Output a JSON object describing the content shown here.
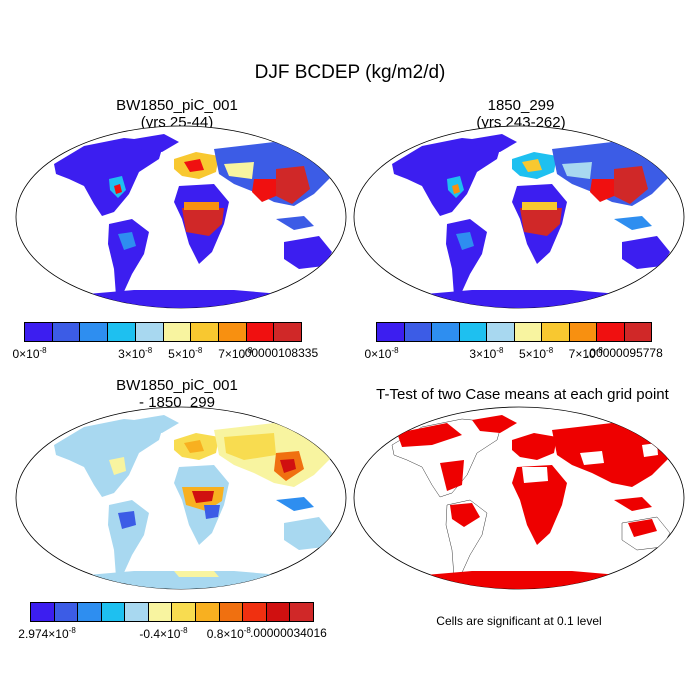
{
  "title": "DJF BCDEP (kg/m2/d)",
  "panels": [
    {
      "title_line1": "BW1850_piC_001",
      "title_line2": "(yrs 25-44)"
    },
    {
      "title_line1": "1850_299",
      "title_line2": "(yrs 243-262)"
    },
    {
      "title_line1": "BW1850_piC_001",
      "title_line2": "- 1850_299"
    },
    {
      "title_line1": "T-Test of two Case means at each grid point",
      "title_line2": ""
    }
  ],
  "colorbars": {
    "case1": {
      "colors": [
        "#3c1ef0",
        "#3c5ce6",
        "#2e8ef0",
        "#1ec0f0",
        "#a8d8f0",
        "#f8f4a0",
        "#f8c830",
        "#f89010",
        "#f01010",
        "#d02828"
      ],
      "labels": [
        {
          "base": "0×10",
          "exp": "-8"
        },
        {
          "base": "3×10",
          "exp": "-8"
        },
        {
          "base": "5×10",
          "exp": "-8"
        },
        {
          "base": "7×10",
          "exp": "-8"
        },
        {
          "base": ".00000108335",
          "exp": ""
        }
      ]
    },
    "case2": {
      "colors": [
        "#3c1ef0",
        "#3c5ce6",
        "#2e8ef0",
        "#1ec0f0",
        "#a8d8f0",
        "#f8f4a0",
        "#f8c830",
        "#f89010",
        "#f01010",
        "#d02828"
      ],
      "labels": [
        {
          "base": "0×10",
          "exp": "-8"
        },
        {
          "base": "3×10",
          "exp": "-8"
        },
        {
          "base": "5×10",
          "exp": "-8"
        },
        {
          "base": "7×10",
          "exp": "-8"
        },
        {
          "base": ".00000095778",
          "exp": ""
        }
      ]
    },
    "diff": {
      "colors": [
        "#3c1ef0",
        "#3c5ce6",
        "#2e8ef0",
        "#1ec0f0",
        "#a8d8f0",
        "#f8f4a0",
        "#f8dc50",
        "#f8b020",
        "#f07010",
        "#f03010",
        "#d01010",
        "#d02828"
      ],
      "labels": [
        {
          "base": "2.974×10",
          "exp": "-8"
        },
        {
          "base": "-0.4×10",
          "exp": "-8"
        },
        {
          "base": "0.8×10",
          "exp": "-8"
        },
        {
          "base": ".00000034016",
          "exp": ""
        }
      ]
    }
  },
  "ttest_note": "Cells are significant at 0.1 level",
  "colors": {
    "low": "#3c1ef0",
    "mid": "#a8d8f0",
    "high": "#d02828",
    "significant": "#ee0000",
    "ocean": "#ffffff"
  }
}
